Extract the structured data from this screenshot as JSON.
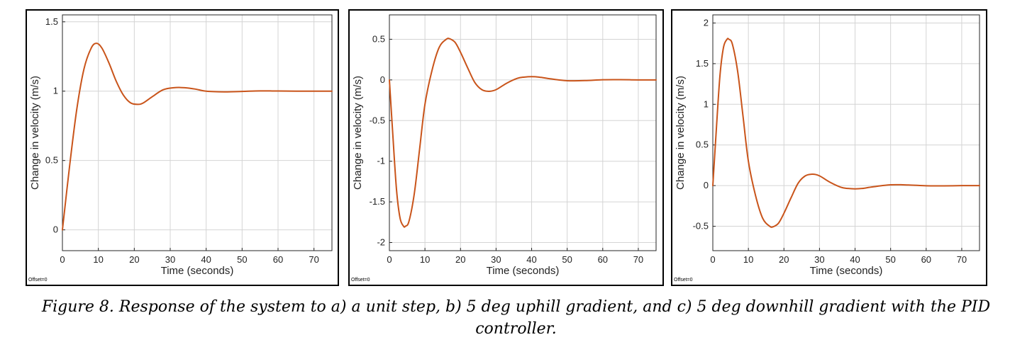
{
  "caption": "Figure 8. Response of the system to a) a unit step, b) 5 deg uphill gradient, and c) 5 deg downhill gradient with the PID controller.",
  "line_color": "#c9541a",
  "chart_data": [
    {
      "type": "line",
      "panel": "a",
      "title": "",
      "xlabel": "Time (seconds)",
      "ylabel": "Change in velocity (m/s)",
      "offset_label": "Offset=0",
      "xlim": [
        0,
        75
      ],
      "ylim": [
        -0.15,
        1.55
      ],
      "xticks": [
        0,
        10,
        20,
        30,
        40,
        50,
        60,
        70
      ],
      "yticks": [
        0,
        0.5,
        1,
        1.5
      ],
      "grid": true,
      "series": [
        {
          "x": [
            0,
            2,
            4,
            6,
            8,
            9.5,
            11,
            13,
            15,
            17,
            19,
            21,
            22.5,
            25,
            28,
            31,
            34,
            37,
            40,
            45,
            50,
            55,
            60,
            65,
            70,
            75
          ],
          "y": [
            0,
            0.46,
            0.87,
            1.16,
            1.31,
            1.345,
            1.31,
            1.2,
            1.07,
            0.97,
            0.915,
            0.905,
            0.915,
            0.96,
            1.01,
            1.025,
            1.025,
            1.015,
            1.0,
            0.995,
            0.998,
            1.002,
            1.001,
            1.0,
            1.0,
            1.0
          ]
        }
      ]
    },
    {
      "type": "line",
      "panel": "b",
      "title": "",
      "xlabel": "Time (seconds)",
      "ylabel": "Change in velocity (m/s)",
      "offset_label": "Offset=0",
      "xlim": [
        0,
        75
      ],
      "ylim": [
        -2.1,
        0.8
      ],
      "xticks": [
        0,
        10,
        20,
        30,
        40,
        50,
        60,
        70
      ],
      "yticks": [
        -2,
        -1.5,
        -1,
        -0.5,
        0,
        0.5
      ],
      "grid": true,
      "series": [
        {
          "x": [
            0,
            1,
            2,
            3,
            4,
            4.5,
            5.5,
            7,
            8.5,
            10,
            12,
            14,
            16,
            17,
            18.5,
            20,
            22,
            24,
            26,
            28,
            30,
            33,
            36,
            38,
            40,
            42,
            45,
            50,
            55,
            60,
            65,
            70,
            75
          ],
          "y": [
            0,
            -0.7,
            -1.35,
            -1.7,
            -1.8,
            -1.8,
            -1.74,
            -1.4,
            -0.85,
            -0.3,
            0.12,
            0.4,
            0.5,
            0.505,
            0.46,
            0.34,
            0.15,
            -0.03,
            -0.12,
            -0.14,
            -0.12,
            -0.04,
            0.02,
            0.035,
            0.04,
            0.035,
            0.015,
            -0.01,
            -0.008,
            0.002,
            0.003,
            0.0,
            0.0
          ]
        }
      ]
    },
    {
      "type": "line",
      "panel": "c",
      "title": "",
      "xlabel": "Time (seconds)",
      "ylabel": "Change in velocity (m/s)",
      "offset_label": "Offset=0",
      "xlim": [
        0,
        75
      ],
      "ylim": [
        -0.8,
        2.1
      ],
      "xticks": [
        0,
        10,
        20,
        30,
        40,
        50,
        60,
        70
      ],
      "yticks": [
        -0.5,
        0,
        0.5,
        1,
        1.5,
        2
      ],
      "grid": true,
      "series": [
        {
          "x": [
            0,
            1,
            2,
            3,
            4,
            4.5,
            5.5,
            7,
            8.5,
            10,
            12,
            14,
            16,
            17,
            18.5,
            20,
            22,
            24,
            26,
            28,
            30,
            33,
            36,
            38,
            40,
            42,
            45,
            50,
            55,
            60,
            65,
            70,
            75
          ],
          "y": [
            0,
            0.7,
            1.35,
            1.7,
            1.8,
            1.8,
            1.74,
            1.4,
            0.85,
            0.3,
            -0.12,
            -0.4,
            -0.5,
            -0.505,
            -0.46,
            -0.34,
            -0.15,
            0.03,
            0.12,
            0.14,
            0.12,
            0.04,
            -0.02,
            -0.035,
            -0.04,
            -0.035,
            -0.015,
            0.01,
            0.008,
            -0.002,
            -0.003,
            0.0,
            0.0
          ]
        }
      ]
    }
  ]
}
